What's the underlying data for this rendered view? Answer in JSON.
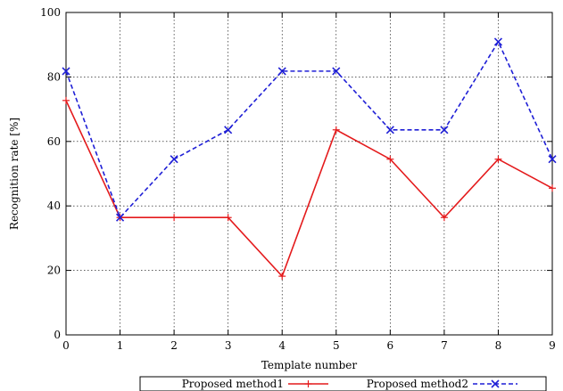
{
  "chart_data": {
    "type": "line",
    "xlabel": "Template number",
    "ylabel": "Recognition rate [%]",
    "x": [
      0,
      1,
      2,
      3,
      4,
      5,
      6,
      7,
      8,
      9
    ],
    "xlim": [
      0,
      9
    ],
    "ylim": [
      0,
      100
    ],
    "x_ticks": [
      "0",
      "1",
      "2",
      "3",
      "4",
      "5",
      "6",
      "7",
      "8",
      "9"
    ],
    "y_ticks": [
      "0",
      "20",
      "40",
      "60",
      "80",
      "100"
    ],
    "grid": true,
    "legend_position": "bottom",
    "series": [
      {
        "name": "Proposed method1",
        "color": "#e41a1c",
        "line_style": "solid",
        "marker": "plus",
        "values": [
          72.7,
          36.4,
          36.4,
          36.4,
          18.2,
          63.6,
          54.5,
          36.4,
          54.5,
          45.5
        ]
      },
      {
        "name": "Proposed method2",
        "color": "#1f1fd6",
        "line_style": "dashed",
        "marker": "cross",
        "values": [
          81.8,
          36.4,
          54.5,
          63.6,
          81.8,
          81.8,
          63.6,
          63.6,
          90.9,
          54.5
        ]
      }
    ]
  }
}
